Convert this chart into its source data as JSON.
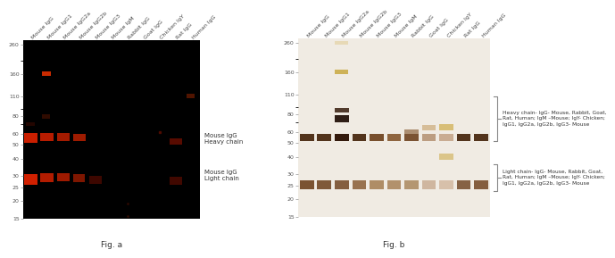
{
  "fig_a": {
    "bg_color": "#000000",
    "label": "Fig. a",
    "x_labels": [
      "Mouse IgG",
      "Mouse IgG1",
      "Mouse IgG2a",
      "Mouse IgG2b",
      "Mouse IgG3",
      "Mouse IgM",
      "Rabbit IgG",
      "Goat IgG",
      "Chicken IgY",
      "Rat IgG",
      "Human IgG"
    ],
    "y_ticks": [
      15,
      20,
      25,
      30,
      40,
      50,
      60,
      80,
      110,
      160,
      260
    ],
    "annot_heavy": "Mouse IgG\nHeavy chain",
    "annot_light": "Mouse IgG\nLight chain"
  },
  "fig_b": {
    "bg_color": "#f0ebe3",
    "label": "Fig. b",
    "x_labels": [
      "Mouse IgG",
      "Mouse IgG1",
      "Mouse IgG2a",
      "Mouse IgG2b",
      "Mouse IgG3",
      "Mouse IgM",
      "Rabbit IgG",
      "Goat IgG",
      "Chicken IgY",
      "Rat IgG",
      "Human IgG"
    ],
    "y_ticks": [
      15,
      20,
      25,
      30,
      40,
      50,
      60,
      80,
      110,
      160,
      260
    ],
    "annot_heavy": "Heavy chain- IgG- Mouse, Rabbit, Goat,\nRat, Human; IgM –Mouse; IgY- Chicken;\nIgG1, IgG2a, IgG2b, IgG3- Mouse",
    "annot_light": "Light chain- IgG- Mouse, Rabbit, Goat,\nRat, Human; IgM –Mouse; IgY- Chicken;\nIgG1, IgG2a, IgG2b, IgG3- Mouse"
  },
  "font_size_labels": 4.5,
  "font_size_yticks": 4.5,
  "font_size_annot_a": 5.0,
  "font_size_annot_b": 4.2,
  "font_size_fig_label": 6.5
}
